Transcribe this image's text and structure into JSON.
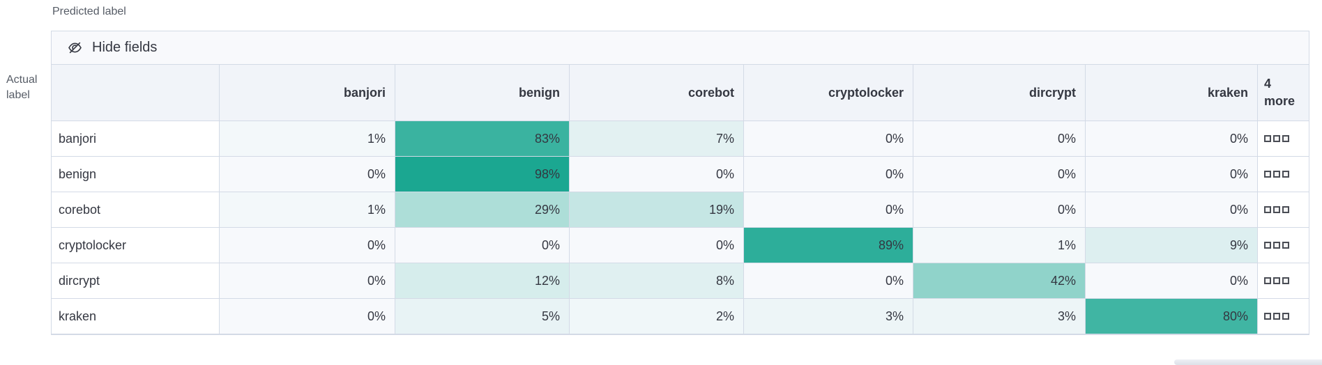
{
  "axes": {
    "predicted": "Predicted label",
    "actual_line1": "Actual",
    "actual_line2": "label"
  },
  "toolbar": {
    "hide_fields": "Hide fields",
    "icon": "eye-closed-icon"
  },
  "columns": [
    "banjori",
    "benign",
    "corebot",
    "cryptolocker",
    "dircrypt",
    "kraken"
  ],
  "more_column": {
    "line1": "4",
    "line2": "more",
    "actions_icon": "boxes-horizontal-icon"
  },
  "rows": [
    {
      "label": "banjori",
      "cells": [
        "1%",
        "83%",
        "7%",
        "0%",
        "0%",
        "0%"
      ]
    },
    {
      "label": "benign",
      "cells": [
        "0%",
        "98%",
        "0%",
        "0%",
        "0%",
        "0%"
      ]
    },
    {
      "label": "corebot",
      "cells": [
        "1%",
        "29%",
        "19%",
        "0%",
        "0%",
        "0%"
      ]
    },
    {
      "label": "cryptolocker",
      "cells": [
        "0%",
        "0%",
        "0%",
        "89%",
        "1%",
        "9%"
      ]
    },
    {
      "label": "dircrypt",
      "cells": [
        "0%",
        "12%",
        "8%",
        "0%",
        "42%",
        "0%"
      ]
    },
    {
      "label": "kraken",
      "cells": [
        "0%",
        "5%",
        "2%",
        "3%",
        "3%",
        "80%"
      ]
    }
  ],
  "colors": {
    "heat_zero": "#F7F9FC",
    "heat_max": "#17A68F",
    "heat_gamma": 0.9,
    "border": "#D3DAE6",
    "header_bg": "#F1F4F9",
    "toolbar_bg": "#F8F9FC",
    "text": "#343741",
    "axis_text": "#565C66",
    "scrollbar": "#E4E7EE"
  },
  "chart_data": {
    "type": "heatmap",
    "xlabel": "Predicted label",
    "ylabel": "Actual label",
    "x_categories": [
      "banjori",
      "benign",
      "corebot",
      "cryptolocker",
      "dircrypt",
      "kraken"
    ],
    "y_categories": [
      "banjori",
      "benign",
      "corebot",
      "cryptolocker",
      "dircrypt",
      "kraken"
    ],
    "values_percent": [
      [
        1,
        83,
        7,
        0,
        0,
        0
      ],
      [
        0,
        98,
        0,
        0,
        0,
        0
      ],
      [
        1,
        29,
        19,
        0,
        0,
        0
      ],
      [
        0,
        0,
        0,
        89,
        1,
        9
      ],
      [
        0,
        12,
        8,
        0,
        42,
        0
      ],
      [
        0,
        5,
        2,
        3,
        3,
        80
      ]
    ],
    "hidden_columns_label": "4 more",
    "color_scale": {
      "min": "#F7F9FC",
      "max": "#1BA791"
    },
    "legend": "none"
  }
}
